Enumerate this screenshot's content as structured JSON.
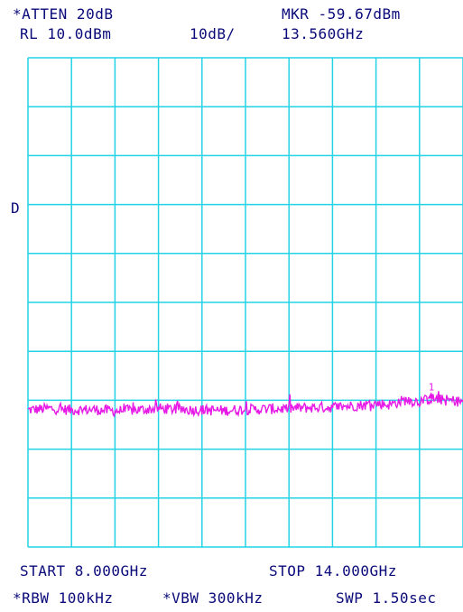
{
  "header": {
    "atten": "*ATTEN 20dB",
    "ref_level": "RL 10.0dBm",
    "scale": "10dB/",
    "marker_level": "MKR -59.67dBm",
    "marker_freq": "13.560GHz"
  },
  "side_marker": "D",
  "footer": {
    "start": "START 8.000GHz",
    "stop": "STOP 14.000GHz",
    "rbw": "*RBW 100kHz",
    "vbw": "*VBW 300kHz",
    "sweep": "SWP 1.50sec"
  },
  "colors": {
    "grid": "#22d3e6",
    "trace": "#e619e6",
    "text": "#0a0a7a"
  },
  "chart_data": {
    "type": "line",
    "title": "",
    "xlabel": "",
    "ylabel": "",
    "x_unit": "GHz",
    "y_unit": "dBm",
    "xlim": [
      8.0,
      14.0
    ],
    "ylim": [
      -90,
      10
    ],
    "x_divisions": 10,
    "y_divisions": 10,
    "grid": true,
    "marker": {
      "label": "1",
      "x": 13.56,
      "y": -59.67
    },
    "series": [
      {
        "x": [
          8.0,
          8.3,
          8.6,
          8.9,
          9.2,
          9.5,
          9.8,
          10.1,
          10.4,
          10.7,
          11.0,
          11.3,
          11.6,
          11.9,
          12.2,
          12.4,
          12.6,
          12.8,
          13.0,
          13.1,
          13.2,
          13.4,
          13.56,
          13.8,
          14.0
        ],
        "values": [
          -62.0,
          -61.7,
          -62.0,
          -61.9,
          -62.2,
          -62.0,
          -61.7,
          -61.9,
          -62.0,
          -62.1,
          -61.9,
          -61.8,
          -61.7,
          -61.5,
          -61.4,
          -61.2,
          -61.0,
          -60.7,
          -60.9,
          -60.4,
          -60.0,
          -60.3,
          -59.7,
          -60.0,
          -60.3
        ]
      }
    ]
  }
}
